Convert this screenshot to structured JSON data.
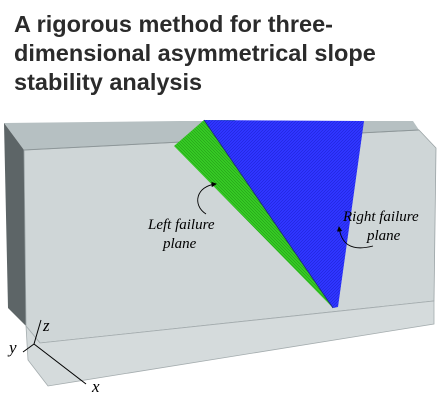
{
  "title_lines": [
    "A rigorous method for three-",
    "dimensional asymmetrical slope",
    "stability analysis"
  ],
  "labels": {
    "left_failure": [
      "Left failure",
      "plane"
    ],
    "right_failure": [
      "Right failure",
      "plane"
    ]
  },
  "axes": {
    "x": "x",
    "y": "y",
    "z": "z"
  },
  "colors": {
    "slope_face": "#cfd6d7",
    "slope_side": "#5d6567",
    "slope_top": "#b6c0c2",
    "left_plane": "#2fc41f",
    "right_plane": "#2a2fff"
  }
}
